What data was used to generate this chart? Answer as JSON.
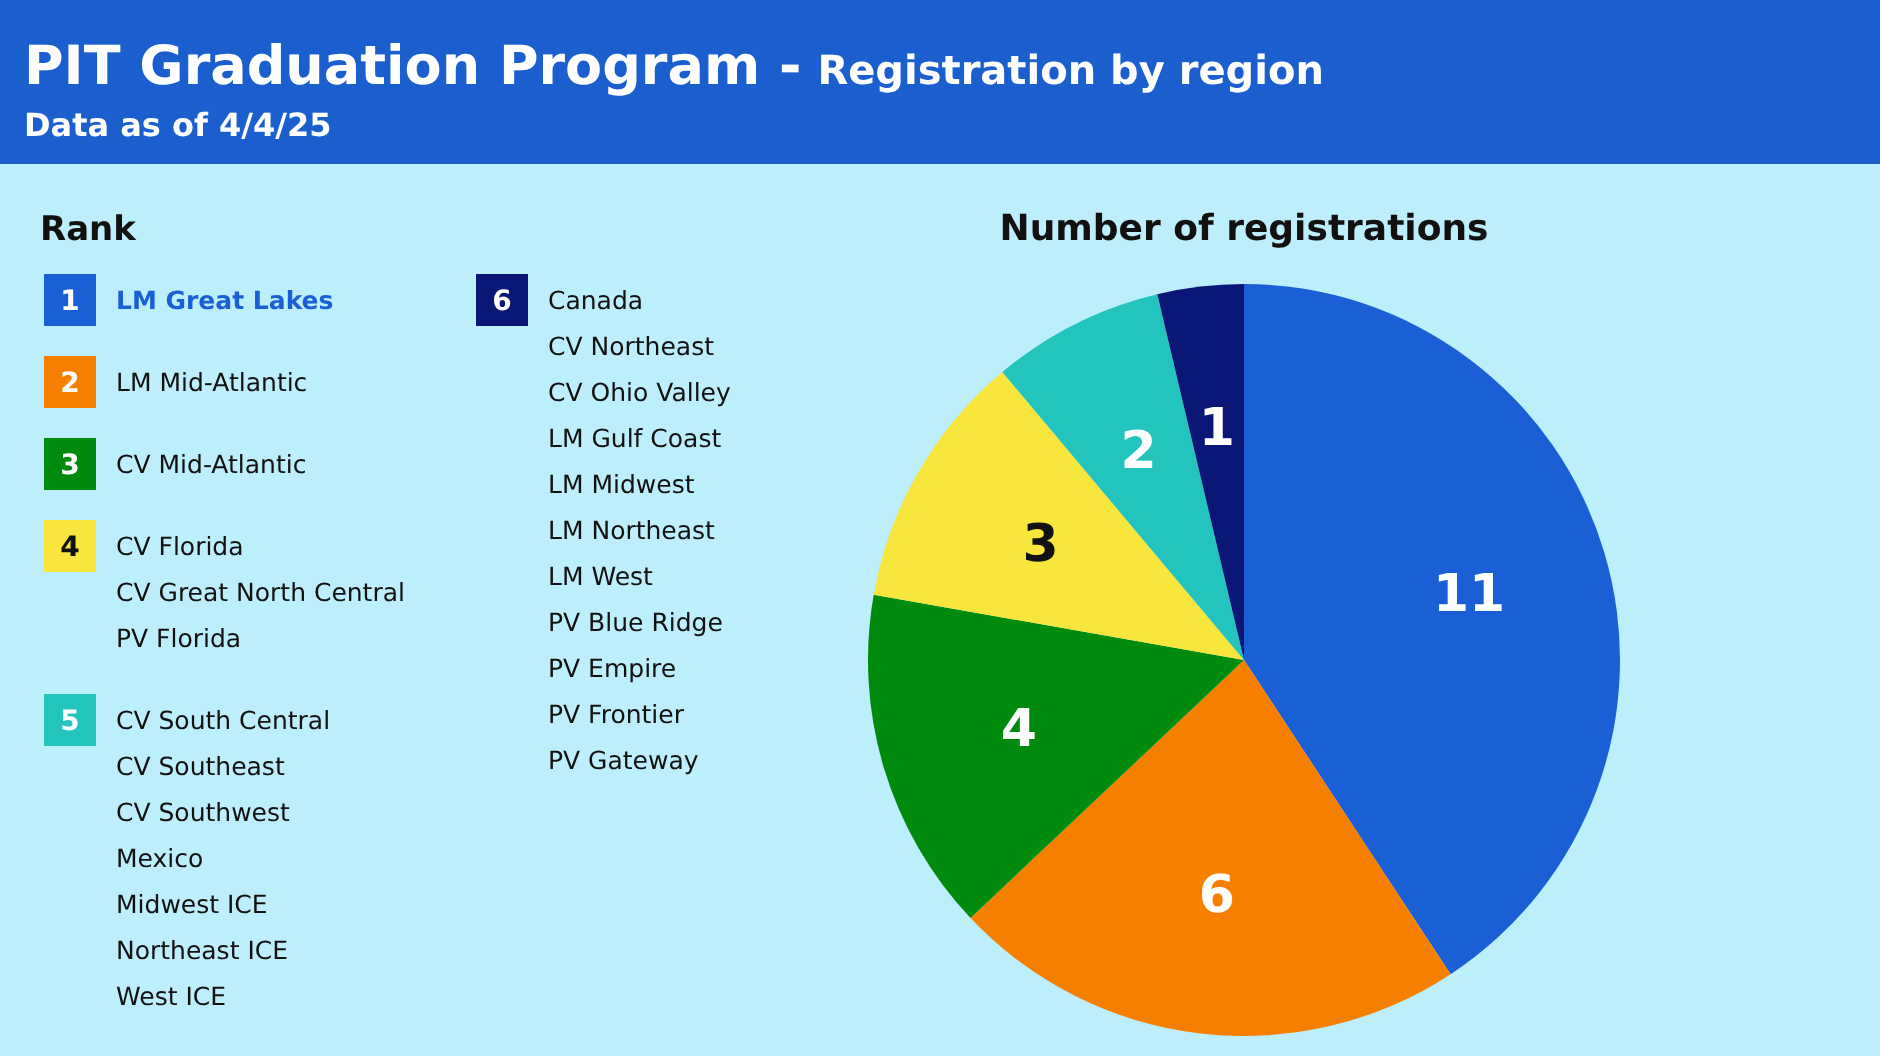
{
  "chart_data": {
    "type": "pie",
    "title": "PIT Graduation Program -",
    "subtitle": "Registration by region",
    "xlabel": "Number of registrations",
    "legend_title": "Rank",
    "legend": "left",
    "data_labels": true,
    "categories": [
      "1",
      "2",
      "3",
      "4",
      "5",
      "6"
    ],
    "values": [
      11,
      6,
      4,
      3,
      2,
      1
    ],
    "colors": [
      "#1a5fd6",
      "#f77f00",
      "#008a0e",
      "#f8e63c",
      "#22c4bd",
      "#0a1776"
    ],
    "annotations": [
      "Data as of 4/4/25",
      "LM Great Lakes",
      "LM Mid-Atlantic",
      "CV Mid-Atlantic",
      "CV Florida\nCV Great North Central\nPV Florida",
      "CV South Central\nCV Southeast\nCV Southwest\nMexico\nMidwest ICE\nNortheast ICE\nWest ICE",
      "Canada\nCV Northeast\nCV Ohio Valley\nLM Gulf Coast\nLM Midwest\nLM Northeast\nLM West\nPV Blue Ridge\nPV Empire\nPV Frontier\nPV Gateway"
    ]
  }
}
